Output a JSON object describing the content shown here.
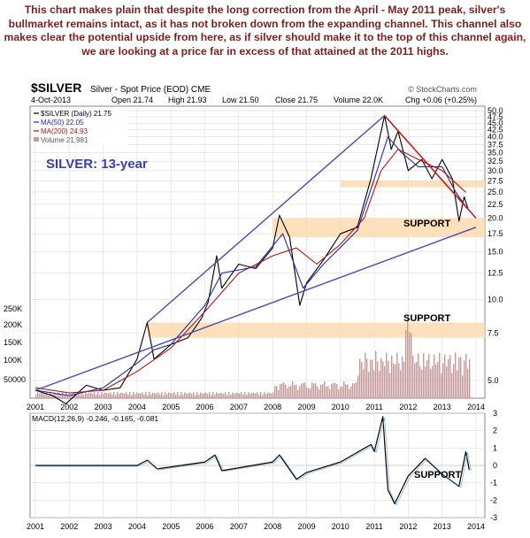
{
  "caption": "This chart makes plain that despite the long correction from the April - May 2011 peak, silver's bullmarket remains intact, as it has not broken down from the expanding channel. This channel also makes clear the potential upside from here, as if silver should make it to the top of this channel again, we are looking at a price far in excess of that attained at the 2011 highs.",
  "chart_data": [
    {
      "type": "line",
      "symbol": "$SILVER",
      "title": "Silver - Spot Price (EOD) CME",
      "date": "4-Oct-2013",
      "ohlc": {
        "open": "Open 21.74",
        "high": "High 21.93",
        "low": "Low 21.50",
        "close": "Close 21.75",
        "volume": "Volume 22.0K",
        "change": "Chg +0.06 (+0.25%)"
      },
      "credit": "© StockCharts.com",
      "legend": [
        "$SILVER (Daily) 21.75",
        "MA(50) 22.05",
        "MA(200) 24.93",
        "Volume 21,981"
      ],
      "annotation": "SILVER: 13-year",
      "support_labels": [
        "SUPPORT",
        "SUPPORT"
      ],
      "support_zones": [
        [
          17,
          20
        ],
        [
          26,
          27.5
        ],
        [
          7.2,
          8.2
        ]
      ],
      "scale": "log",
      "ylim": [
        4.3,
        52
      ],
      "y_ticks": [
        50.0,
        47.5,
        45.0,
        42.5,
        40.0,
        37.5,
        35.0,
        32.5,
        30.0,
        27.5,
        25.0,
        22.5,
        20.0,
        17.5,
        15.0,
        12.5,
        10.0,
        7.5,
        5.0
      ],
      "xlim": [
        2001.0,
        2014.0
      ],
      "x_ticks": [
        "2001",
        "2002",
        "2003",
        "2004",
        "2005",
        "2006",
        "2007",
        "2008",
        "2009",
        "2010",
        "2011",
        "2012",
        "2013",
        "2014"
      ],
      "volume_ticks": [
        "250K",
        "200K",
        "150K",
        "100K",
        "50000"
      ],
      "colors": {
        "price": "#000000",
        "ma50": "#1f2aa8",
        "ma200": "#b01515",
        "volume": "#c79a9a",
        "channel": "#4a4ab0",
        "resistance": "#cc1a1a",
        "support": "#fbdcb0"
      },
      "series": [
        {
          "name": "$SILVER (Daily)",
          "x": [
            2001.0,
            2001.5,
            2001.9,
            2002.5,
            2003.0,
            2003.5,
            2004.0,
            2004.3,
            2004.5,
            2005.0,
            2005.5,
            2005.9,
            2006.1,
            2006.35,
            2006.5,
            2007.0,
            2007.5,
            2008.0,
            2008.2,
            2008.5,
            2008.8,
            2009.0,
            2009.5,
            2010.0,
            2010.5,
            2010.9,
            2011.3,
            2011.5,
            2011.7,
            2012.0,
            2012.4,
            2012.7,
            2013.0,
            2013.3,
            2013.5,
            2013.65,
            2013.76
          ],
          "y": [
            4.6,
            4.4,
            4.1,
            4.8,
            4.6,
            4.7,
            6.0,
            8.2,
            6.0,
            6.8,
            7.2,
            8.5,
            9.8,
            14.5,
            11.0,
            13.5,
            13.0,
            15.5,
            20.5,
            17.0,
            9.5,
            11.5,
            14.0,
            17.5,
            18.5,
            28.0,
            48.0,
            36.0,
            42.0,
            30.0,
            33.0,
            28.0,
            33.0,
            28.0,
            19.5,
            24.0,
            21.75
          ]
        },
        {
          "name": "MA(50)",
          "x": [
            2001.0,
            2002.0,
            2003.0,
            2004.0,
            2004.5,
            2005.0,
            2006.0,
            2006.5,
            2007.5,
            2008.3,
            2008.9,
            2009.5,
            2010.5,
            2011.0,
            2011.4,
            2011.8,
            2012.3,
            2013.0,
            2013.4,
            2013.7
          ],
          "y": [
            4.6,
            4.4,
            4.7,
            5.8,
            6.5,
            6.8,
            9.5,
            12.5,
            13.2,
            17.5,
            11.0,
            13.5,
            18.0,
            28.0,
            40.0,
            35.0,
            31.0,
            31.0,
            25.0,
            22.05
          ]
        },
        {
          "name": "MA(200)",
          "x": [
            2001.0,
            2002.0,
            2003.0,
            2004.0,
            2005.0,
            2006.0,
            2007.0,
            2008.0,
            2008.7,
            2009.3,
            2010.0,
            2010.7,
            2011.2,
            2011.7,
            2012.3,
            2013.0,
            2013.7
          ],
          "y": [
            4.7,
            4.5,
            4.6,
            5.4,
            6.6,
            9.0,
            12.5,
            14.5,
            15.5,
            13.5,
            16.0,
            20.0,
            30.0,
            36.0,
            33.0,
            30.0,
            24.93
          ]
        },
        {
          "name": "Upper channel",
          "x": [
            2004.3,
            2011.3
          ],
          "y": [
            8.2,
            48.0
          ]
        },
        {
          "name": "Lower channel",
          "x": [
            2001.0,
            2014.0
          ],
          "y": [
            4.6,
            18.5
          ]
        },
        {
          "name": "Resistance",
          "x": [
            2011.3,
            2014.0
          ],
          "y": [
            48.0,
            20.0
          ]
        }
      ]
    },
    {
      "type": "line",
      "legend": "MACD(12,26,9) -0.246, -0.165, -0.081",
      "ylim": [
        -3,
        3
      ],
      "y_ticks": [
        3,
        2,
        1,
        0,
        -1,
        -2,
        -3
      ],
      "x_ticks": [
        "2001",
        "2002",
        "2003",
        "2004",
        "2005",
        "2006",
        "2007",
        "2008",
        "2009",
        "2010",
        "2011",
        "2012",
        "2013",
        "2014"
      ],
      "annotation": "SUPPORT",
      "series": [
        {
          "name": "MACD",
          "x": [
            2001.0,
            2004.0,
            2004.3,
            2004.6,
            2006.0,
            2006.3,
            2006.5,
            2008.0,
            2008.2,
            2008.7,
            2009.0,
            2010.0,
            2010.9,
            2011.0,
            2011.25,
            2011.4,
            2011.6,
            2012.0,
            2012.5,
            2013.0,
            2013.5,
            2013.7,
            2013.8
          ],
          "y": [
            0,
            0,
            0.3,
            -0.2,
            0.2,
            0.6,
            -0.3,
            0.2,
            0.6,
            -0.8,
            -0.4,
            0.2,
            1.2,
            0.8,
            2.8,
            -1.4,
            -2.2,
            -0.6,
            0.4,
            -0.5,
            -1.2,
            0.8,
            -0.25
          ]
        }
      ]
    }
  ]
}
